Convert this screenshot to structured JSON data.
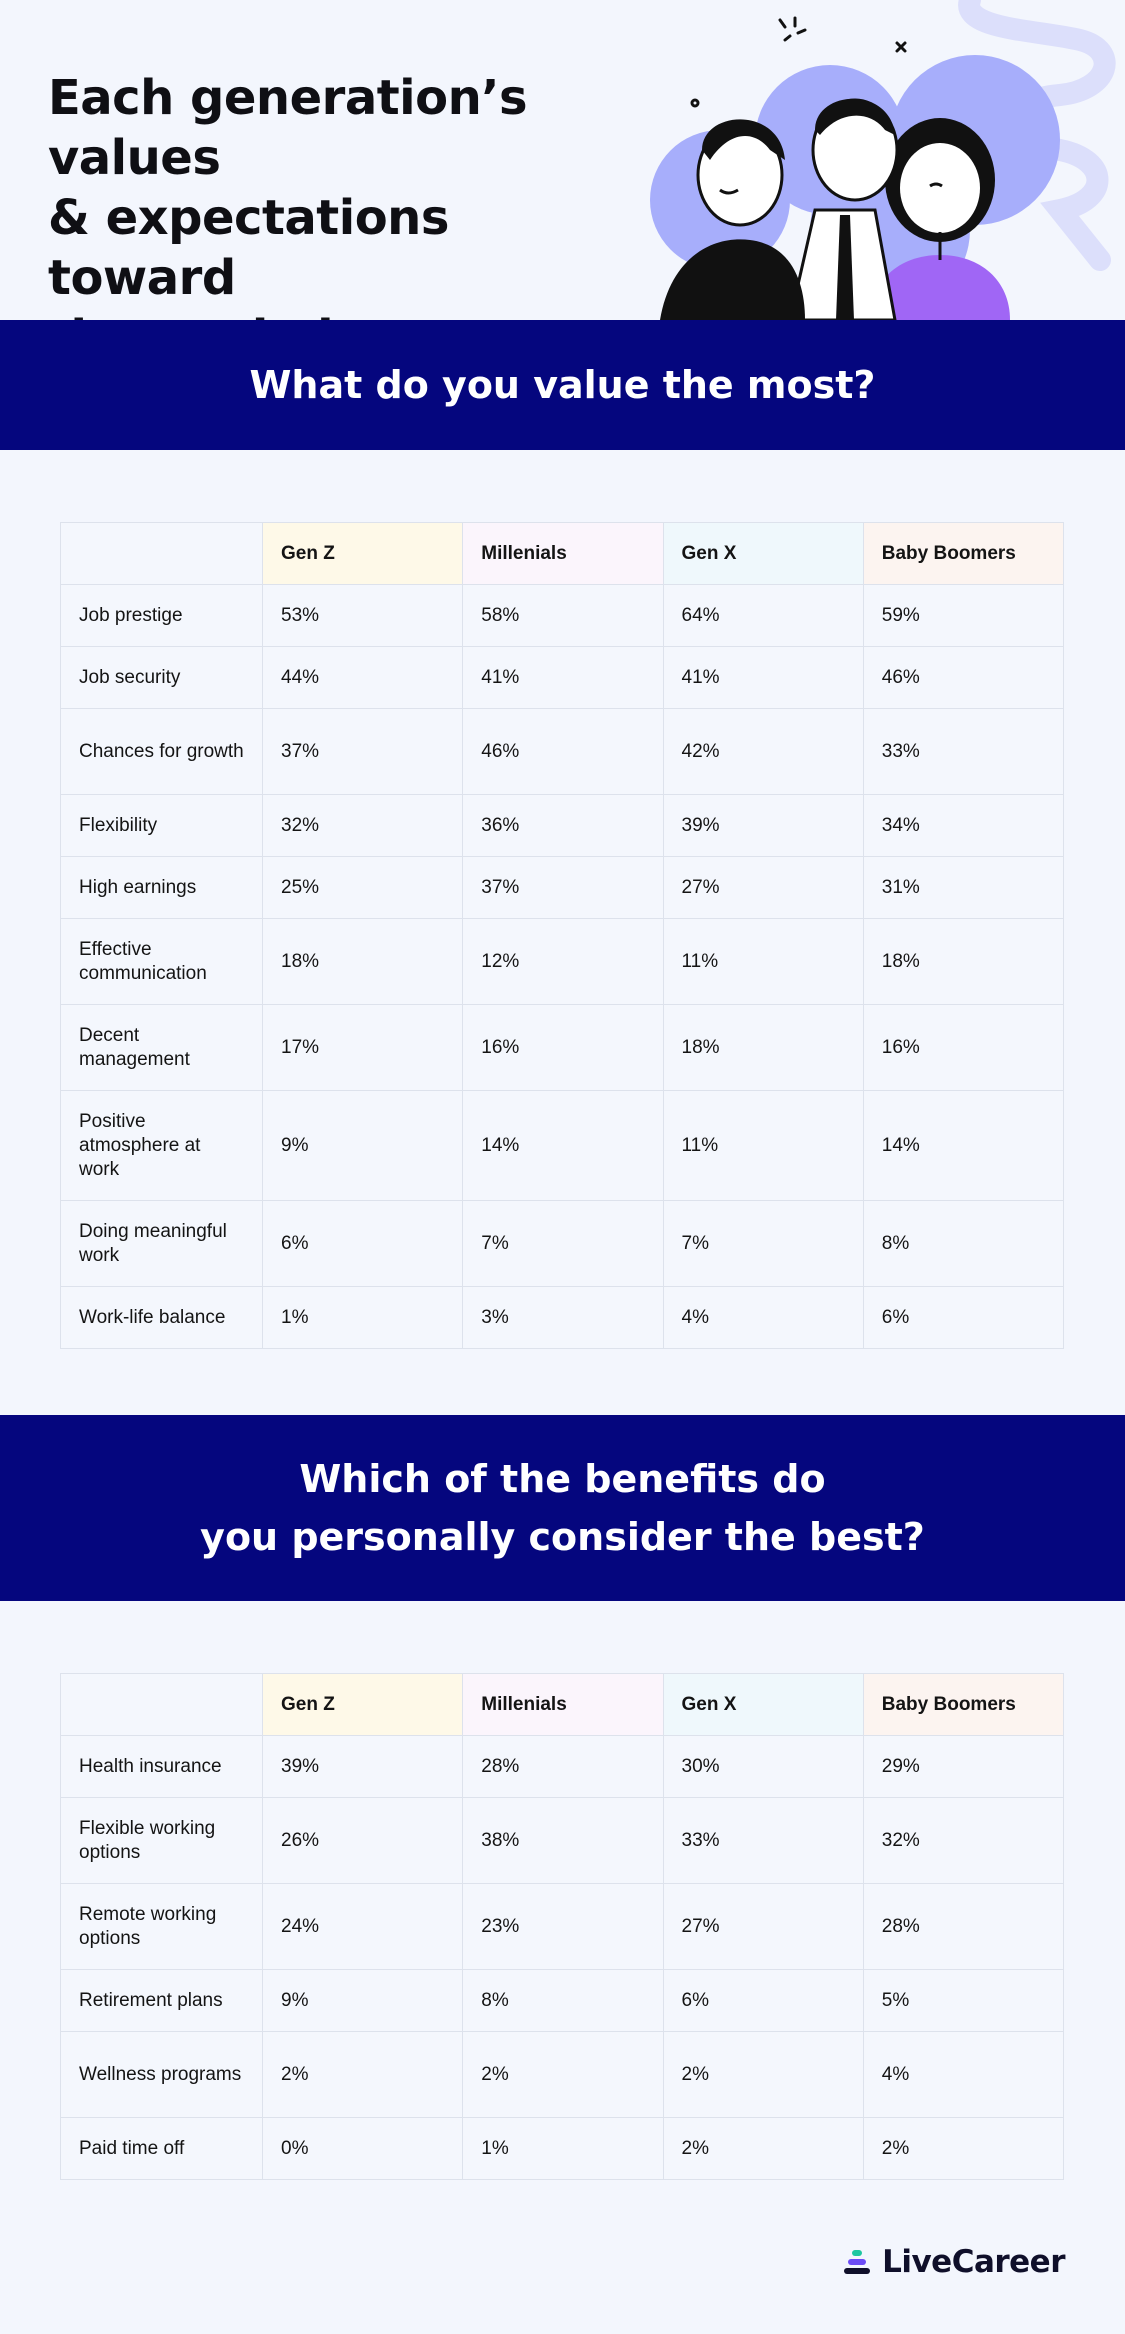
{
  "header": {
    "title": "Each generation’s values\n& expectations toward\nthe workplace"
  },
  "colors": {
    "band": "#05067e",
    "background": "#f3f6fd",
    "gen_z_header": "#fef9e8",
    "millenials_header": "#fbf5fc",
    "gen_x_header": "#eff8fc",
    "baby_boomers_header": "#fcf4f0"
  },
  "section1": {
    "heading": "What do you value the most?"
  },
  "section2": {
    "heading_line1": "Which of the benefits do",
    "heading_line2": "you personally consider the best?"
  },
  "logo": {
    "text": "LiveCareer",
    "icon": "livecareer-logo-icon"
  },
  "chart_data": [
    {
      "type": "table",
      "title": "What do you value the most?",
      "columns": [
        "",
        "Gen Z",
        "Millenials",
        "Gen X",
        "Baby Boomers"
      ],
      "rows": [
        [
          "Job prestige",
          "53%",
          "58%",
          "64%",
          "59%"
        ],
        [
          "Job security",
          "44%",
          "41%",
          "41%",
          "46%"
        ],
        [
          "Chances for growth",
          "37%",
          "46%",
          "42%",
          "33%"
        ],
        [
          "Flexibility",
          "32%",
          "36%",
          "39%",
          "34%"
        ],
        [
          "High earnings",
          "25%",
          "37%",
          "27%",
          "31%"
        ],
        [
          "Effective communication",
          "18%",
          "12%",
          "11%",
          "18%"
        ],
        [
          "Decent management",
          "17%",
          "16%",
          "18%",
          "16%"
        ],
        [
          "Positive atmosphere at work",
          "9%",
          "14%",
          "11%",
          "14%"
        ],
        [
          "Doing meaningful work",
          "6%",
          "7%",
          "7%",
          "8%"
        ],
        [
          "Work-life balance",
          "1%",
          "3%",
          "4%",
          "6%"
        ]
      ]
    },
    {
      "type": "table",
      "title": "Which of the benefits do you personally consider the best?",
      "columns": [
        "",
        "Gen Z",
        "Millenials",
        "Gen X",
        "Baby Boomers"
      ],
      "rows": [
        [
          "Health insurance",
          "39%",
          "28%",
          "30%",
          "29%"
        ],
        [
          "Flexible working options",
          "26%",
          "38%",
          "33%",
          "32%"
        ],
        [
          "Remote working options",
          "24%",
          "23%",
          "27%",
          "28%"
        ],
        [
          "Retirement plans",
          "9%",
          "8%",
          "6%",
          "5%"
        ],
        [
          "Wellness programs",
          "2%",
          "2%",
          "2%",
          "4%"
        ],
        [
          "Paid time off",
          "0%",
          "1%",
          "2%",
          "2%"
        ]
      ]
    }
  ]
}
